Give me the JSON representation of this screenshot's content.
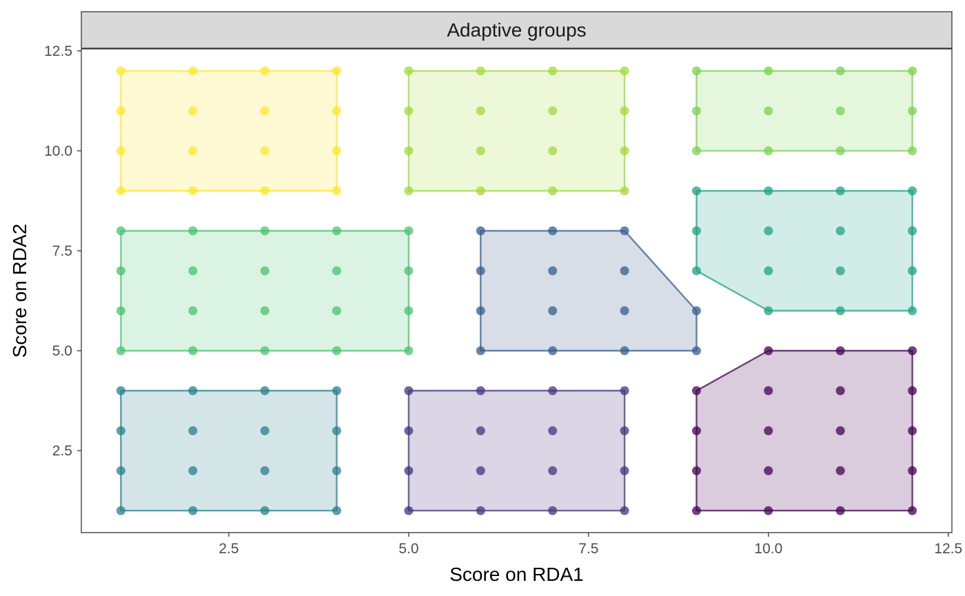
{
  "chart_data": {
    "type": "scatter",
    "facet_title": "Adaptive groups",
    "xlabel": "Score on RDA1",
    "ylabel": "Score on RDA2",
    "xlim": [
      0.45,
      12.55
    ],
    "ylim": [
      0.45,
      12.55
    ],
    "x_ticks": [
      2.5,
      5.0,
      7.5,
      10.0,
      12.5
    ],
    "x_tick_labels": [
      "2.5",
      "5.0",
      "7.5",
      "10.0",
      "12.5"
    ],
    "y_ticks": [
      2.5,
      5.0,
      7.5,
      10.0,
      12.5
    ],
    "y_tick_labels": [
      "2.5",
      "5.0",
      "7.5",
      "10.0",
      "12.5"
    ],
    "grid": false,
    "legend": "none",
    "series": [
      {
        "color": "#440154",
        "points": [
          [
            9,
            1
          ],
          [
            10,
            1
          ],
          [
            11,
            1
          ],
          [
            12,
            1
          ],
          [
            9,
            2
          ],
          [
            10,
            2
          ],
          [
            11,
            2
          ],
          [
            12,
            2
          ],
          [
            9,
            3
          ],
          [
            10,
            3
          ],
          [
            11,
            3
          ],
          [
            12,
            3
          ],
          [
            9,
            4
          ],
          [
            10,
            4
          ],
          [
            11,
            4
          ],
          [
            12,
            4
          ],
          [
            10,
            5
          ],
          [
            11,
            5
          ],
          [
            12,
            5
          ]
        ],
        "hull": [
          [
            9,
            1
          ],
          [
            12,
            1
          ],
          [
            12,
            5
          ],
          [
            10,
            5
          ],
          [
            9,
            4
          ]
        ]
      },
      {
        "color": "#46337E",
        "points": [
          [
            5,
            1
          ],
          [
            6,
            1
          ],
          [
            7,
            1
          ],
          [
            8,
            1
          ],
          [
            5,
            2
          ],
          [
            6,
            2
          ],
          [
            7,
            2
          ],
          [
            8,
            2
          ],
          [
            5,
            3
          ],
          [
            6,
            3
          ],
          [
            7,
            3
          ],
          [
            8,
            3
          ],
          [
            5,
            4
          ],
          [
            6,
            4
          ],
          [
            7,
            4
          ],
          [
            8,
            4
          ]
        ],
        "hull": [
          [
            5,
            1
          ],
          [
            8,
            1
          ],
          [
            8,
            4
          ],
          [
            5,
            4
          ]
        ]
      },
      {
        "color": "#365C8D",
        "points": [
          [
            6,
            5
          ],
          [
            7,
            5
          ],
          [
            8,
            5
          ],
          [
            9,
            5
          ],
          [
            6,
            6
          ],
          [
            7,
            6
          ],
          [
            8,
            6
          ],
          [
            9,
            6
          ],
          [
            6,
            7
          ],
          [
            7,
            7
          ],
          [
            8,
            7
          ],
          [
            6,
            8
          ],
          [
            7,
            8
          ],
          [
            8,
            8
          ]
        ],
        "hull": [
          [
            6,
            5
          ],
          [
            9,
            5
          ],
          [
            9,
            6
          ],
          [
            8,
            8
          ],
          [
            6,
            8
          ]
        ]
      },
      {
        "color": "#277F8E",
        "points": [
          [
            1,
            1
          ],
          [
            2,
            1
          ],
          [
            3,
            1
          ],
          [
            4,
            1
          ],
          [
            1,
            2
          ],
          [
            2,
            2
          ],
          [
            3,
            2
          ],
          [
            4,
            2
          ],
          [
            1,
            3
          ],
          [
            2,
            3
          ],
          [
            3,
            3
          ],
          [
            4,
            3
          ],
          [
            1,
            4
          ],
          [
            2,
            4
          ],
          [
            3,
            4
          ],
          [
            4,
            4
          ]
        ],
        "hull": [
          [
            1,
            1
          ],
          [
            4,
            1
          ],
          [
            4,
            4
          ],
          [
            1,
            4
          ]
        ]
      },
      {
        "color": "#1FA187",
        "points": [
          [
            10,
            6
          ],
          [
            11,
            6
          ],
          [
            12,
            6
          ],
          [
            9,
            7
          ],
          [
            10,
            7
          ],
          [
            11,
            7
          ],
          [
            12,
            7
          ],
          [
            9,
            8
          ],
          [
            10,
            8
          ],
          [
            11,
            8
          ],
          [
            12,
            8
          ],
          [
            9,
            9
          ],
          [
            10,
            9
          ],
          [
            11,
            9
          ],
          [
            12,
            9
          ]
        ],
        "hull": [
          [
            10,
            6
          ],
          [
            12,
            6
          ],
          [
            12,
            9
          ],
          [
            9,
            9
          ],
          [
            9,
            7
          ]
        ]
      },
      {
        "color": "#4AC16D",
        "points": [
          [
            1,
            5
          ],
          [
            2,
            5
          ],
          [
            3,
            5
          ],
          [
            4,
            5
          ],
          [
            5,
            5
          ],
          [
            1,
            6
          ],
          [
            2,
            6
          ],
          [
            3,
            6
          ],
          [
            4,
            6
          ],
          [
            5,
            6
          ],
          [
            1,
            7
          ],
          [
            2,
            7
          ],
          [
            3,
            7
          ],
          [
            4,
            7
          ],
          [
            5,
            7
          ],
          [
            1,
            8
          ],
          [
            2,
            8
          ],
          [
            3,
            8
          ],
          [
            4,
            8
          ],
          [
            5,
            8
          ]
        ],
        "hull": [
          [
            1,
            5
          ],
          [
            5,
            5
          ],
          [
            5,
            8
          ],
          [
            1,
            8
          ]
        ]
      },
      {
        "color": "#7AD151",
        "points": [
          [
            9,
            10
          ],
          [
            10,
            10
          ],
          [
            11,
            10
          ],
          [
            12,
            10
          ],
          [
            9,
            11
          ],
          [
            10,
            11
          ],
          [
            11,
            11
          ],
          [
            12,
            11
          ],
          [
            9,
            12
          ],
          [
            10,
            12
          ],
          [
            11,
            12
          ],
          [
            12,
            12
          ]
        ],
        "hull": [
          [
            9,
            10
          ],
          [
            12,
            10
          ],
          [
            12,
            12
          ],
          [
            9,
            12
          ]
        ]
      },
      {
        "color": "#A0DA39",
        "points": [
          [
            5,
            9
          ],
          [
            6,
            9
          ],
          [
            7,
            9
          ],
          [
            8,
            9
          ],
          [
            5,
            10
          ],
          [
            6,
            10
          ],
          [
            7,
            10
          ],
          [
            8,
            10
          ],
          [
            5,
            11
          ],
          [
            6,
            11
          ],
          [
            7,
            11
          ],
          [
            8,
            11
          ],
          [
            5,
            12
          ],
          [
            6,
            12
          ],
          [
            7,
            12
          ],
          [
            8,
            12
          ]
        ],
        "hull": [
          [
            5,
            9
          ],
          [
            8,
            9
          ],
          [
            8,
            12
          ],
          [
            5,
            12
          ]
        ]
      },
      {
        "color": "#FDE725",
        "points": [
          [
            1,
            9
          ],
          [
            2,
            9
          ],
          [
            3,
            9
          ],
          [
            4,
            9
          ],
          [
            1,
            10
          ],
          [
            2,
            10
          ],
          [
            3,
            10
          ],
          [
            4,
            10
          ],
          [
            1,
            11
          ],
          [
            2,
            11
          ],
          [
            3,
            11
          ],
          [
            4,
            11
          ],
          [
            1,
            12
          ],
          [
            2,
            12
          ],
          [
            3,
            12
          ],
          [
            4,
            12
          ]
        ],
        "hull": [
          [
            1,
            9
          ],
          [
            4,
            9
          ],
          [
            4,
            12
          ],
          [
            1,
            12
          ]
        ]
      }
    ]
  }
}
